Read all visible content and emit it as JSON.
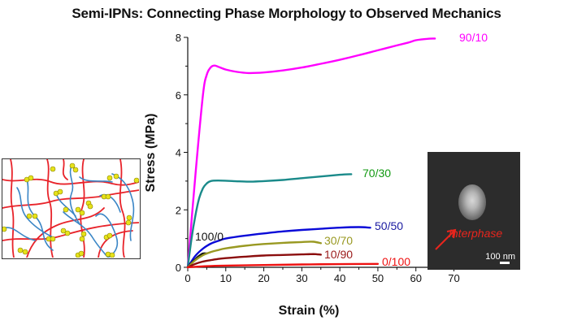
{
  "title": "Semi-IPNs: Connecting Phase Morphology to Observed Mechanics",
  "chart_data": {
    "type": "line",
    "title": "Semi-IPNs: Connecting Phase Morphology to Observed Mechanics",
    "xlabel": "Strain (%)",
    "ylabel": "Stress (MPa)",
    "xlim": [
      0,
      75
    ],
    "ylim": [
      0,
      8
    ],
    "x_ticks": [
      0,
      10,
      20,
      30,
      40,
      50,
      60,
      70
    ],
    "y_ticks": [
      0,
      2,
      4,
      6,
      8
    ],
    "grid": false,
    "legend": "inline labels at curve ends",
    "series": [
      {
        "name": "90/10",
        "color": "#ff00ff",
        "x": [
          0,
          2,
          4,
          5,
          6,
          7,
          8,
          10,
          13,
          16,
          20,
          25,
          30,
          35,
          40,
          45,
          50,
          55,
          58,
          60,
          63,
          65
        ],
        "y": [
          0,
          3.2,
          6.0,
          6.7,
          6.95,
          7.02,
          6.98,
          6.88,
          6.8,
          6.76,
          6.78,
          6.85,
          6.95,
          7.08,
          7.22,
          7.38,
          7.55,
          7.72,
          7.82,
          7.9,
          7.95,
          7.96
        ]
      },
      {
        "name": "70/30",
        "color": "#1a8a8a",
        "x": [
          0,
          1,
          2,
          3,
          4,
          5,
          6,
          8,
          12,
          16,
          20,
          25,
          30,
          35,
          40,
          43
        ],
        "y": [
          0,
          1.0,
          1.8,
          2.4,
          2.75,
          2.92,
          3.0,
          3.02,
          3.0,
          2.98,
          3.0,
          3.04,
          3.1,
          3.16,
          3.22,
          3.24
        ]
      },
      {
        "name": "50/50",
        "color": "#0a0ad8",
        "x": [
          0,
          2,
          4,
          6,
          8,
          10,
          15,
          20,
          25,
          30,
          35,
          40,
          45,
          48
        ],
        "y": [
          0,
          0.4,
          0.65,
          0.82,
          0.92,
          1.0,
          1.1,
          1.18,
          1.25,
          1.3,
          1.34,
          1.38,
          1.4,
          1.38
        ]
      },
      {
        "name": "100/0",
        "color": "#111111",
        "x": [
          0,
          1,
          2,
          3,
          4,
          5
        ],
        "y": [
          0,
          0.15,
          0.28,
          0.4,
          0.48,
          0.48
        ]
      },
      {
        "name": "30/70",
        "color": "#999922",
        "x": [
          0,
          2,
          4,
          6,
          8,
          10,
          15,
          20,
          25,
          30,
          33,
          35
        ],
        "y": [
          0,
          0.25,
          0.42,
          0.53,
          0.6,
          0.66,
          0.75,
          0.81,
          0.85,
          0.88,
          0.89,
          0.84
        ]
      },
      {
        "name": "10/90",
        "color": "#8b0d0d",
        "x": [
          0,
          2,
          4,
          6,
          8,
          10,
          15,
          20,
          25,
          30,
          33,
          35
        ],
        "y": [
          0,
          0.12,
          0.2,
          0.25,
          0.29,
          0.32,
          0.37,
          0.41,
          0.43,
          0.45,
          0.46,
          0.44
        ]
      },
      {
        "name": "0/100",
        "color": "#ee1111",
        "x": [
          0,
          5,
          10,
          20,
          30,
          40,
          50
        ],
        "y": [
          0,
          0.04,
          0.06,
          0.08,
          0.1,
          0.11,
          0.12
        ]
      }
    ]
  },
  "labels": {
    "s90_10": "90/10",
    "s70_30": "70/30",
    "s50_50": "50/50",
    "s100_0": "100/0",
    "s30_70": "30/70",
    "s10_90": "10/90",
    "s0_100": "0/100"
  },
  "tem_inset": {
    "label": "Interphase",
    "scale_bar": "100 nm"
  },
  "network_inset": {
    "description": "semi-IPN network schematic",
    "colors": {
      "network_a": "#e8232a",
      "network_b": "#3b86c6",
      "nodes": "#e6e21a"
    }
  }
}
